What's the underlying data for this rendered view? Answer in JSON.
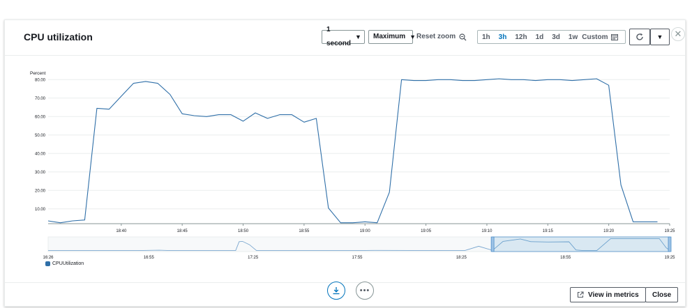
{
  "dialog": {
    "title": "CPU utilization",
    "period_select": "1 second",
    "stat_select": "Maximum",
    "reset_zoom_label": "Reset zoom",
    "time_ranges": [
      "1h",
      "3h",
      "12h",
      "1d",
      "3d",
      "1w"
    ],
    "active_range": "3h",
    "custom_label": "Custom",
    "view_in_metrics_label": "View in metrics",
    "close_label": "Close",
    "accent_color": "#0073bb"
  },
  "chart_data": {
    "type": "line",
    "ylabel": "Percent",
    "ylim": [
      2,
      82
    ],
    "yticks": [
      "10.00",
      "20.00",
      "30.00",
      "40.00",
      "50.00",
      "60.00",
      "70.00",
      "80.00"
    ],
    "xlim": [
      "18:34",
      "19:25"
    ],
    "xticks": [
      "18:40",
      "18:45",
      "18:50",
      "18:55",
      "19:00",
      "19:05",
      "19:10",
      "19:15",
      "19:20",
      "19:25"
    ],
    "grid": true,
    "series": [
      {
        "name": "CPUUtilization",
        "color": "#2f6fa8",
        "x": [
          "18:34",
          "18:35",
          "18:36",
          "18:37",
          "18:38",
          "18:39",
          "18:40",
          "18:41",
          "18:42",
          "18:43",
          "18:44",
          "18:45",
          "18:46",
          "18:47",
          "18:48",
          "18:49",
          "18:50",
          "18:51",
          "18:52",
          "18:53",
          "18:54",
          "18:55",
          "18:56",
          "18:57",
          "18:58",
          "18:59",
          "19:00",
          "19:01",
          "19:02",
          "19:03",
          "19:04",
          "19:05",
          "19:06",
          "19:07",
          "19:08",
          "19:09",
          "19:10",
          "19:11",
          "19:12",
          "19:13",
          "19:14",
          "19:15",
          "19:16",
          "19:17",
          "19:18",
          "19:19",
          "19:20",
          "19:21",
          "19:22",
          "19:23",
          "19:24"
        ],
        "y": [
          3.5,
          2.5,
          3.5,
          4,
          64.5,
          64,
          71,
          78,
          79,
          78,
          72,
          61.5,
          60.5,
          60,
          61,
          61,
          57.5,
          62,
          59,
          61,
          61,
          57,
          59,
          10.5,
          2.5,
          2.5,
          3,
          2.5,
          19,
          80,
          79.5,
          79.5,
          80,
          80,
          79.5,
          79.5,
          80,
          80.5,
          80,
          80,
          79.5,
          80,
          80,
          79.5,
          80,
          80.5,
          77,
          23,
          3,
          3,
          3
        ]
      }
    ]
  },
  "navigator": {
    "xticks": [
      "16:26",
      "16:55",
      "17:25",
      "17:55",
      "18:25",
      "18:55",
      "19:25"
    ],
    "xlim": [
      "16:26",
      "19:25"
    ],
    "selection": [
      "18:34",
      "19:25"
    ],
    "series": {
      "x": [
        "16:26",
        "16:52",
        "16:58",
        "17:01",
        "17:20",
        "17:21",
        "17:22",
        "17:24",
        "17:26",
        "17:55",
        "18:00",
        "18:26",
        "18:30",
        "18:34",
        "18:37",
        "18:42",
        "18:45",
        "18:50",
        "18:56",
        "18:58",
        "19:00",
        "19:04",
        "19:08",
        "19:22",
        "19:24",
        "19:25"
      ],
      "y": [
        2,
        2,
        4,
        2,
        2,
        60,
        62,
        40,
        2,
        2,
        3,
        2,
        30,
        3,
        62,
        78,
        60,
        58,
        59,
        6,
        2,
        2,
        80,
        80,
        20,
        3
      ],
      "ylim": [
        0,
        82
      ]
    }
  },
  "icons": {
    "dropdown": "caret-down-icon",
    "zoom": "zoom-icon",
    "calendar": "calendar-icon",
    "refresh": "refresh-icon",
    "close": "close-x-icon",
    "download": "download-icon",
    "more": "more-icon",
    "external": "external-link-icon"
  }
}
